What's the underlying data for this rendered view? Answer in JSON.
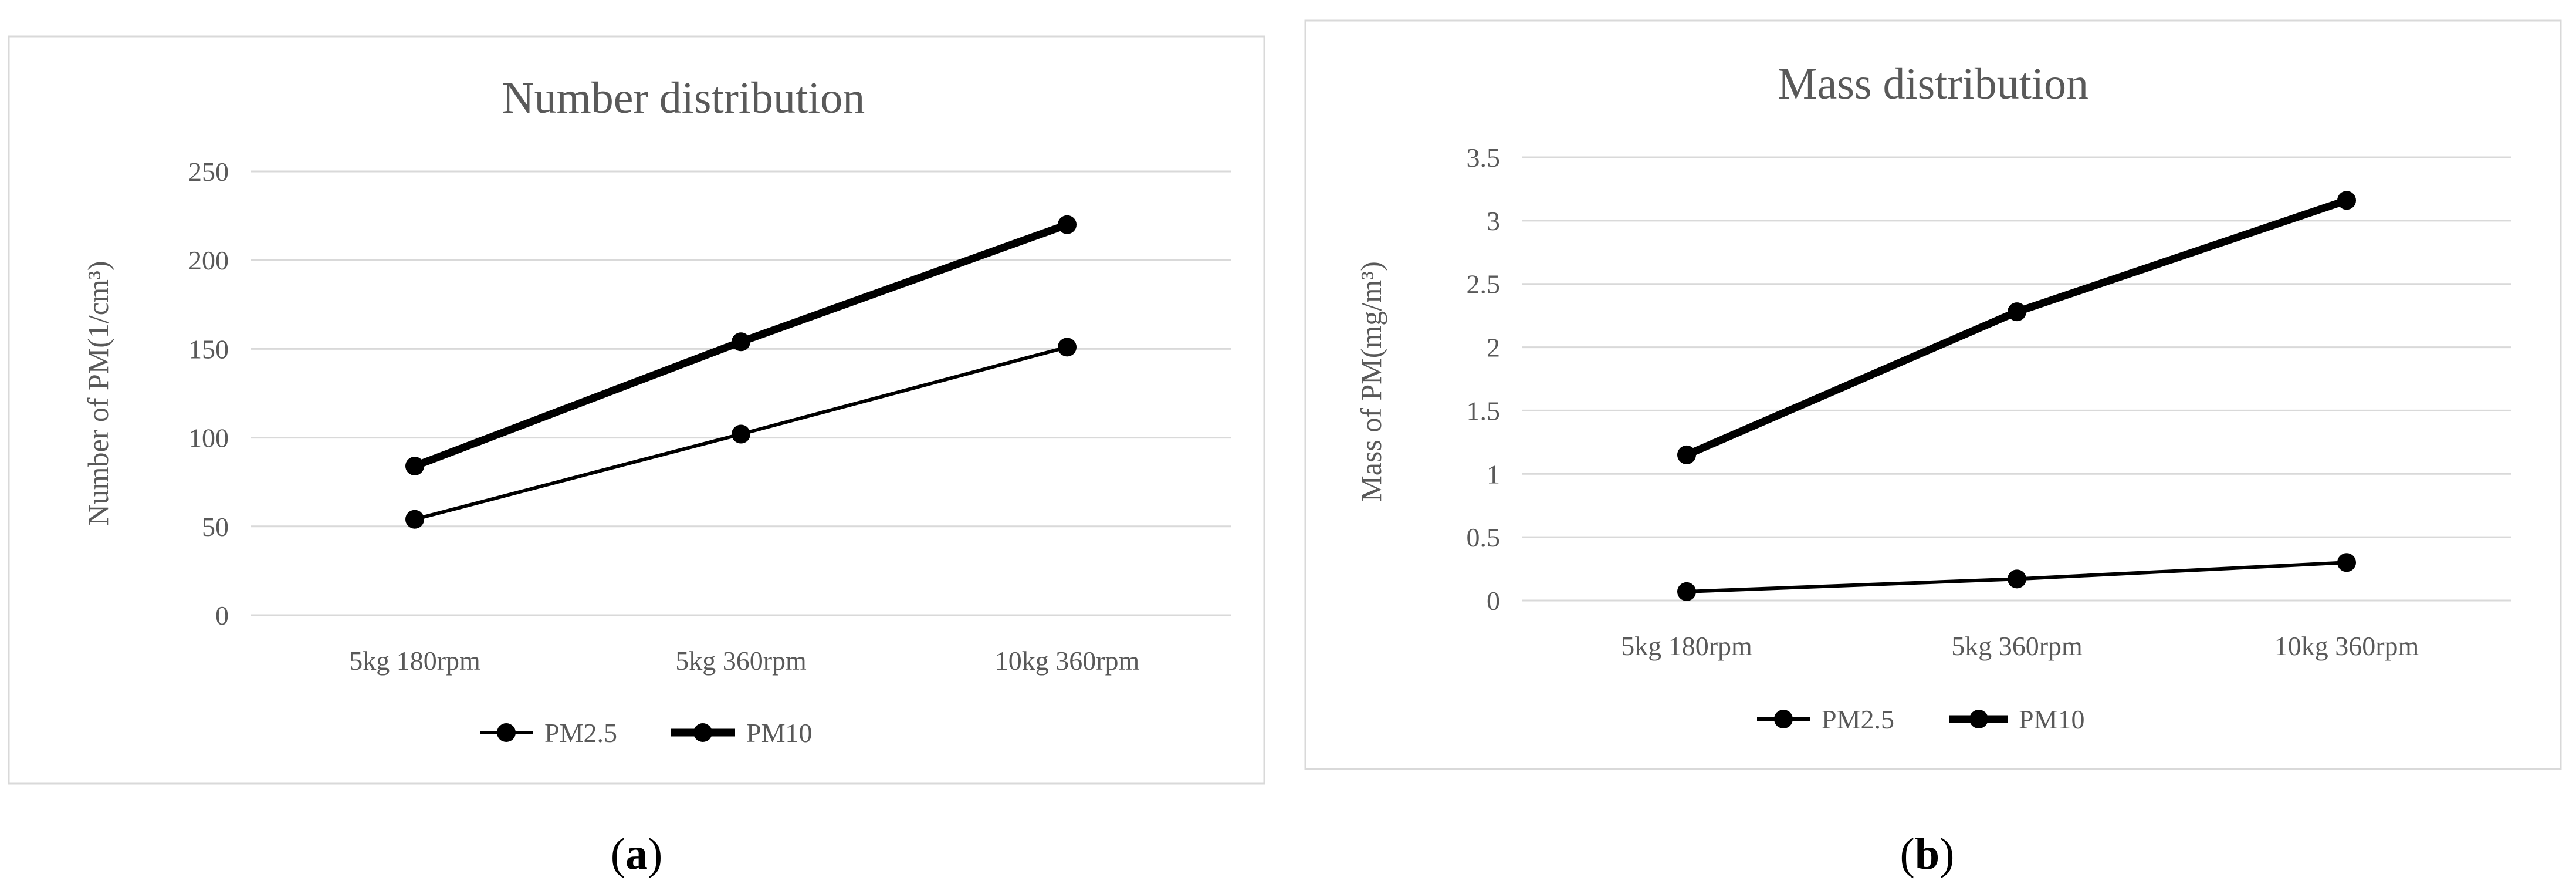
{
  "chart_data": [
    {
      "type": "line",
      "title": "Number distribution",
      "xlabel": "",
      "ylabel": "Number of PM(1/cm³)",
      "categories": [
        "5kg 180rpm",
        "5kg 360rpm",
        "10kg 360rpm"
      ],
      "yticks": [
        "0",
        "50",
        "100",
        "150",
        "200",
        "250"
      ],
      "ylim": [
        0,
        250
      ],
      "grid": "horizontal",
      "legend": "bottom",
      "series": [
        {
          "name": "PM2.5",
          "values": [
            54,
            102,
            151
          ],
          "color": "#000000",
          "width": "thin"
        },
        {
          "name": "PM10",
          "values": [
            84,
            154,
            220
          ],
          "color": "#000000",
          "width": "thick"
        }
      ],
      "caption_open": "(",
      "caption_letter": "a",
      "caption_close": ")"
    },
    {
      "type": "line",
      "title": "Mass distribution",
      "xlabel": "",
      "ylabel": "Mass of PM(mg/m³)",
      "categories": [
        "5kg 180rpm",
        "5kg 360rpm",
        "10kg 360rpm"
      ],
      "yticks": [
        "0",
        "0.5",
        "1",
        "1.5",
        "2",
        "2.5",
        "3",
        "3.5"
      ],
      "ylim": [
        0,
        3.5
      ],
      "grid": "horizontal",
      "legend": "bottom",
      "series": [
        {
          "name": "PM2.5",
          "values": [
            0.07,
            0.17,
            0.3
          ],
          "color": "#000000",
          "width": "thin"
        },
        {
          "name": "PM10",
          "values": [
            1.15,
            2.28,
            3.16
          ],
          "color": "#000000",
          "width": "thick"
        }
      ],
      "caption_open": "(",
      "caption_letter": "b",
      "caption_close": ")"
    }
  ]
}
